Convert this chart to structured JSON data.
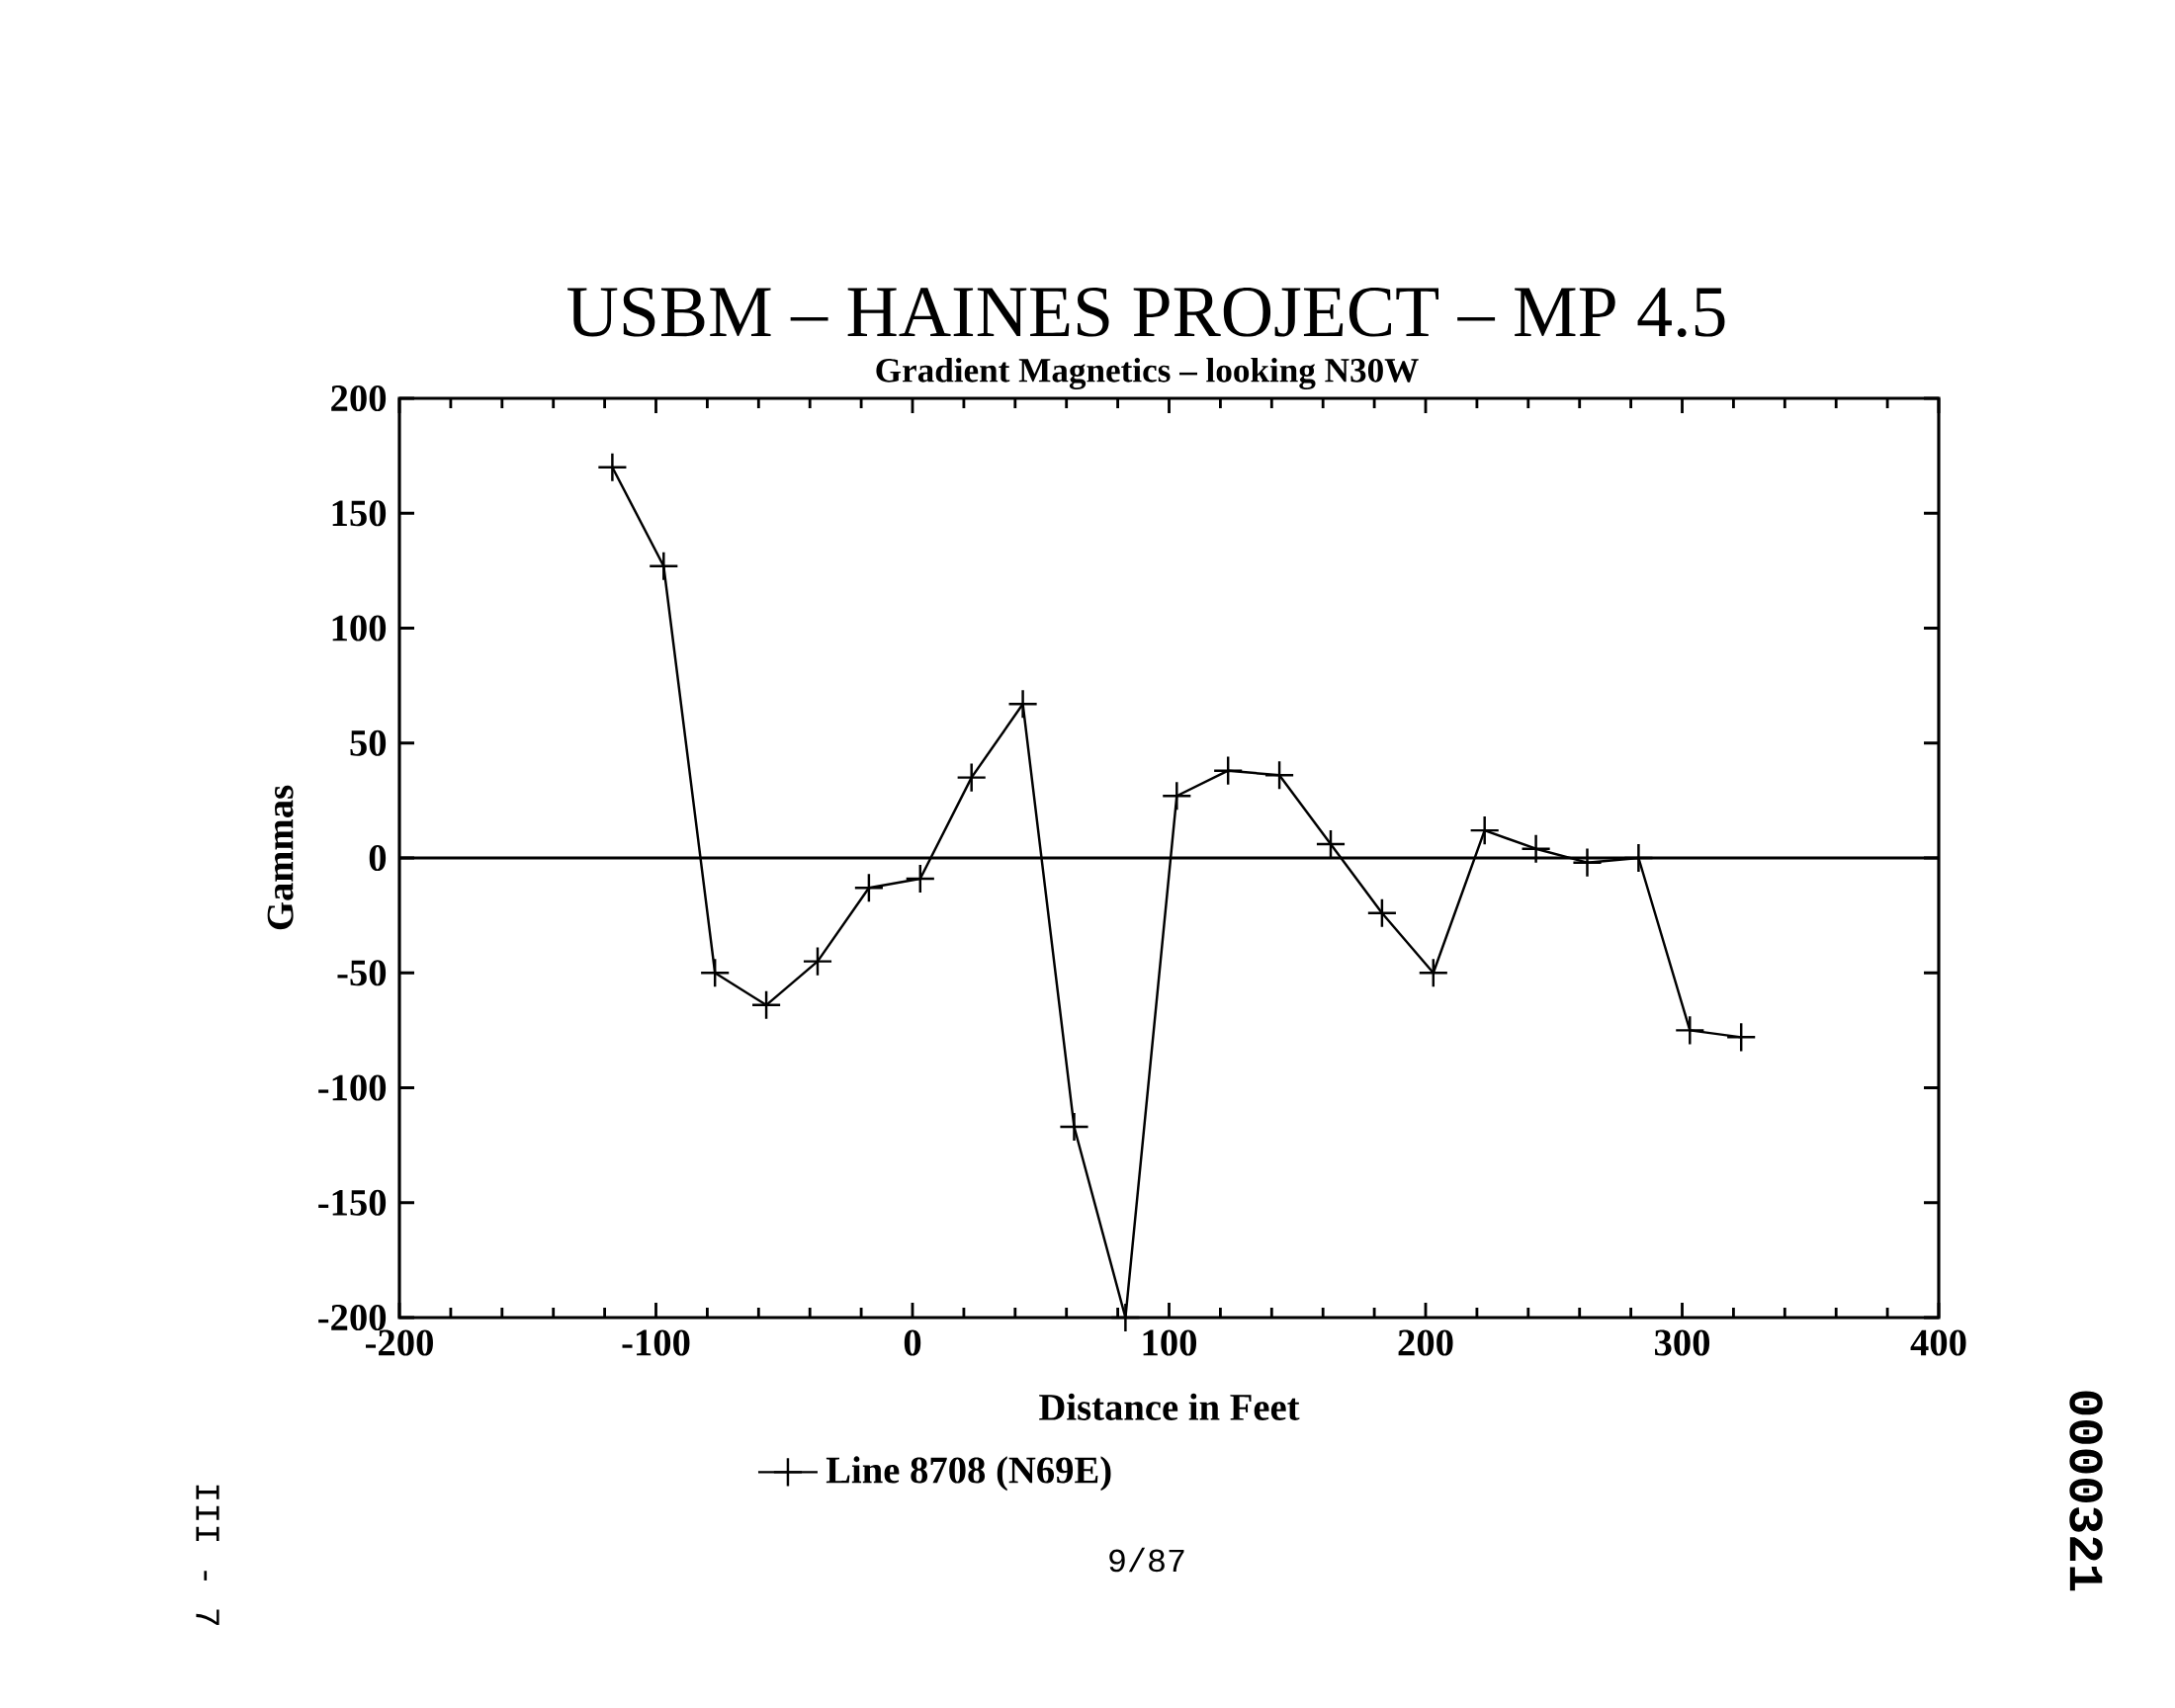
{
  "chart_data": {
    "type": "line",
    "title": "USBM – HAINES PROJECT – MP 4.5",
    "subtitle": "Gradient Magnetics – looking N30W",
    "xlabel": "Distance in Feet",
    "ylabel": "Gammas",
    "x": [
      -117,
      -97,
      -77,
      -57,
      -37,
      -17,
      3,
      23,
      43,
      63,
      83,
      103,
      123,
      143,
      163,
      183,
      203,
      223,
      243,
      263,
      283,
      303,
      323
    ],
    "series": [
      {
        "name": "Line 8708 (N69E)",
        "color": "#000000",
        "values": [
          170,
          127,
          -50,
          -64,
          -45,
          -13,
          -9,
          35,
          67,
          -117,
          -200,
          27,
          38,
          36,
          6,
          -24,
          -50,
          12,
          4,
          -2,
          0,
          -75,
          -78
        ]
      }
    ],
    "xlim": [
      -200,
      400
    ],
    "xticks": [
      -200,
      -100,
      0,
      100,
      200,
      300,
      400
    ],
    "ylim": [
      -200,
      200
    ],
    "yticks": [
      -200,
      -150,
      -100,
      -50,
      0,
      50,
      100,
      150,
      200
    ],
    "ref_lines": [
      {
        "axis": "y",
        "value": 0,
        "color": "#000000"
      }
    ],
    "marker": "cross",
    "line_style": "solid",
    "legend": "bottom",
    "grid": false,
    "annotations": [
      "9/87",
      "III - 7",
      "0000321"
    ]
  }
}
